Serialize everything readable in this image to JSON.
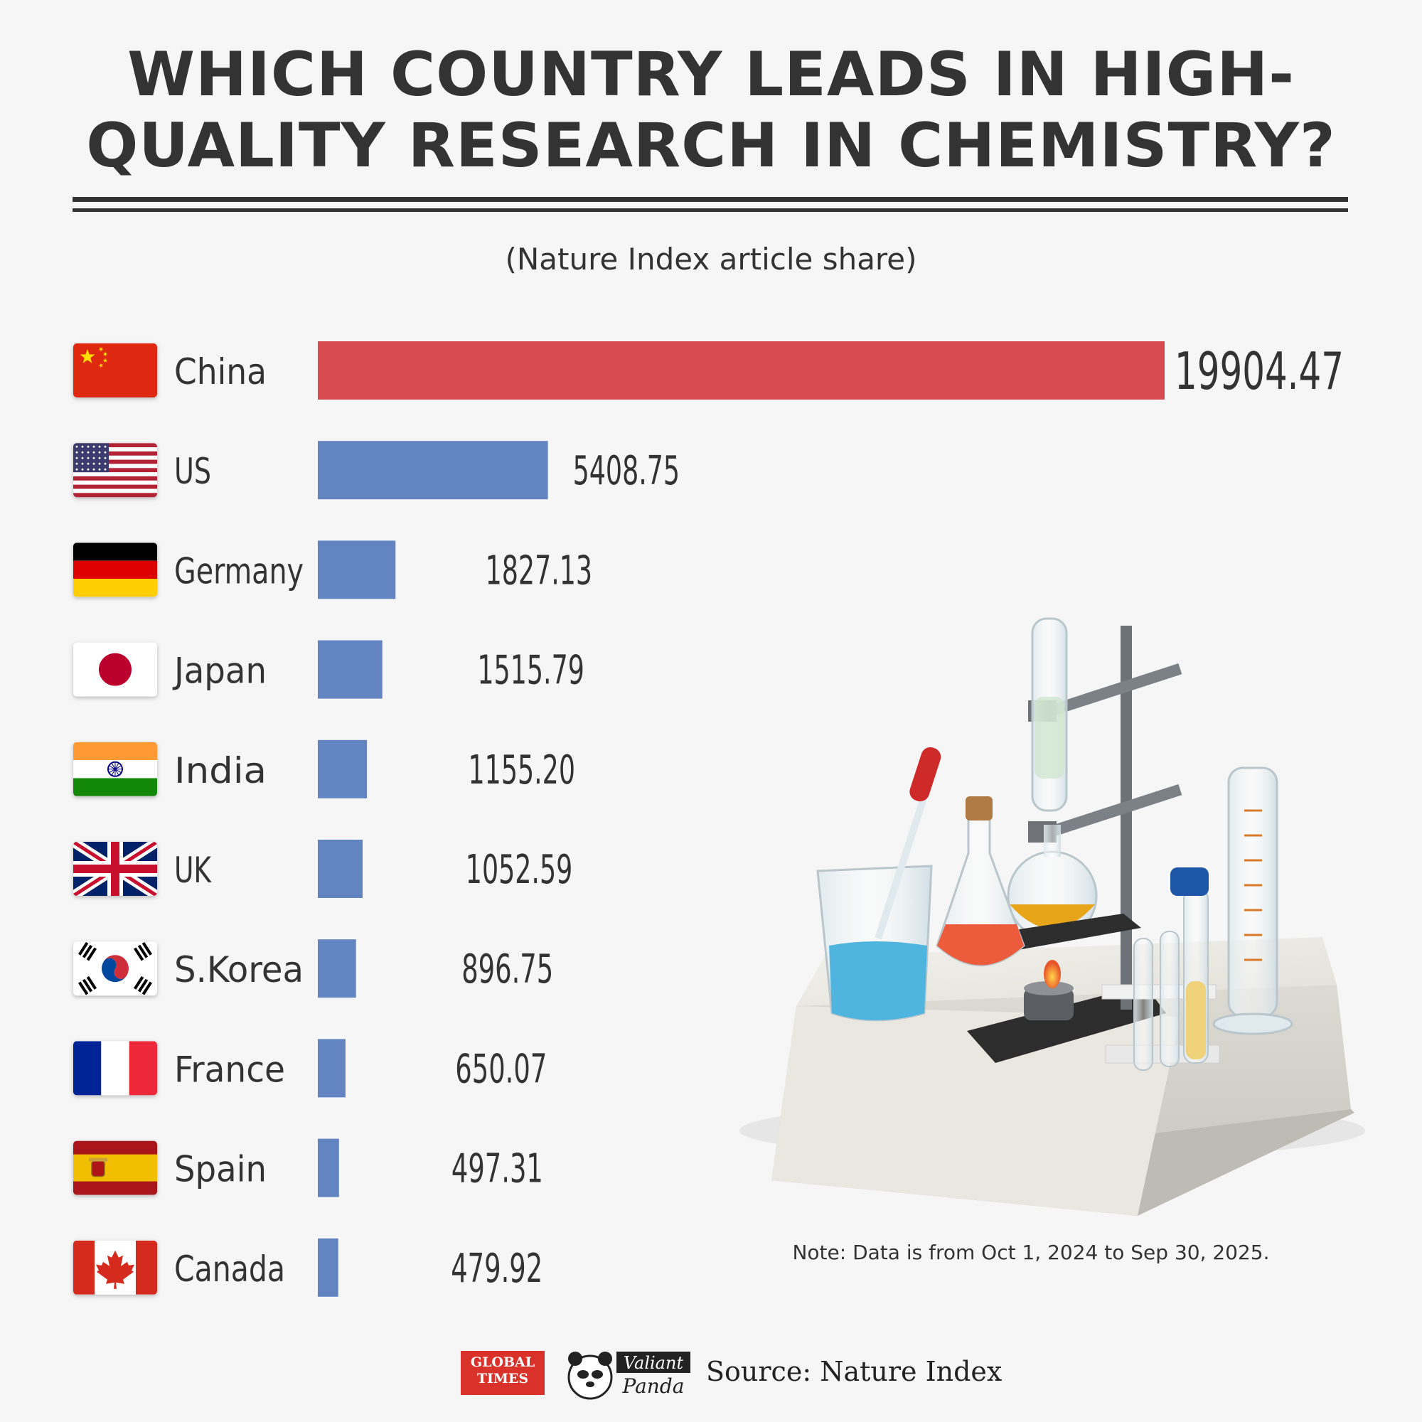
{
  "title": "WHICH COUNTRY LEADS IN HIGH-QUALITY RESEARCH IN CHEMISTRY?",
  "subtitle": "(Nature Index article share)",
  "note": "Note: Data is from Oct 1, 2024 to Sep 30, 2025.",
  "footer": {
    "logo_gt_line1": "GLOBAL",
    "logo_gt_line2": "TIMES",
    "logo_panda_line1": "Valiant",
    "logo_panda_line2": "Panda",
    "source": "Source: Nature Index"
  },
  "colors": {
    "highlight": "#d64a50",
    "bar": "#6285c1",
    "text": "#333333"
  },
  "chart_data": {
    "type": "bar",
    "orientation": "horizontal",
    "title": "WHICH COUNTRY LEADS IN HIGH-QUALITY RESEARCH IN CHEMISTRY?",
    "subtitle": "(Nature Index article share)",
    "categories": [
      "China",
      "US",
      "Germany",
      "Japan",
      "India",
      "UK",
      "S.Korea",
      "France",
      "Spain",
      "Canada"
    ],
    "values": [
      19904.47,
      5408.75,
      1827.13,
      1515.79,
      1155.2,
      1052.59,
      896.75,
      650.07,
      497.31,
      479.92
    ],
    "value_labels": [
      "19904.47",
      "5408.75",
      "1827.13",
      "1515.79",
      "1155.20",
      "1052.59",
      "896.75",
      "650.07",
      "497.31",
      "479.92"
    ],
    "flag_icons": [
      "china-flag-icon",
      "us-flag-icon",
      "germany-flag-icon",
      "japan-flag-icon",
      "india-flag-icon",
      "uk-flag-icon",
      "south-korea-flag-icon",
      "france-flag-icon",
      "spain-flag-icon",
      "canada-flag-icon"
    ],
    "xlim": [
      0,
      19904.47
    ],
    "grid": false,
    "legend": "none"
  }
}
